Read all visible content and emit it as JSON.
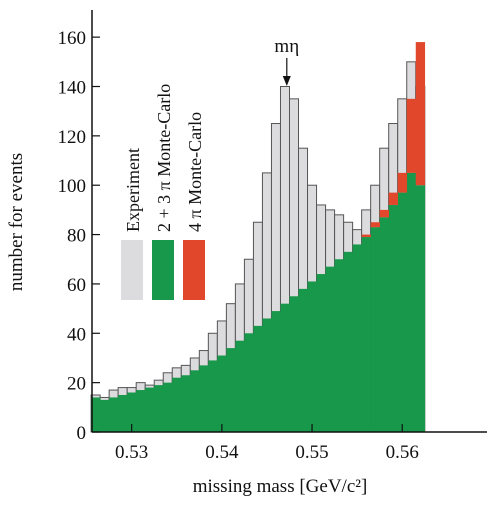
{
  "chart_data": {
    "type": "histogram",
    "xlabel": "missing mass [GeV/c²]",
    "ylabel": "number for events",
    "annotation": {
      "text": "mη",
      "x": 0.5472
    },
    "bins": [
      0.5255,
      0.5265,
      0.5275,
      0.5285,
      0.5295,
      0.5305,
      0.5315,
      0.5325,
      0.5335,
      0.5345,
      0.5355,
      0.5365,
      0.5375,
      0.5385,
      0.5395,
      0.5405,
      0.5415,
      0.5425,
      0.5435,
      0.5445,
      0.5455,
      0.5465,
      0.5475,
      0.5485,
      0.5495,
      0.5505,
      0.5515,
      0.5525,
      0.5535,
      0.5545,
      0.5555,
      0.5565,
      0.5575,
      0.5585,
      0.5595,
      0.5605,
      0.5615,
      0.5625
    ],
    "series": [
      {
        "name": "Experiment",
        "color": "#dcdcdf",
        "values": [
          15,
          14,
          17,
          18,
          18,
          20,
          19,
          21,
          24,
          26,
          27,
          30,
          33,
          40,
          45,
          52,
          60,
          70,
          85,
          105,
          125,
          140,
          135,
          115,
          100,
          92,
          90,
          88,
          85,
          82,
          90,
          100,
          115,
          125,
          135,
          150,
          140
        ]
      },
      {
        "name": "2 + 3 π Monte-Carlo",
        "color": "#17984a",
        "values": [
          14,
          13,
          14,
          15,
          16,
          17,
          18,
          19,
          20,
          22,
          23,
          25,
          27,
          29,
          31,
          34,
          37,
          40,
          43,
          46,
          49,
          52,
          55,
          58,
          61,
          64,
          67,
          70,
          73,
          76,
          79,
          83,
          87,
          92,
          97,
          105,
          100
        ]
      },
      {
        "name": "4 π Monte-Carlo",
        "color": "#e0472b",
        "values": [
          0,
          0,
          0,
          0,
          0,
          0,
          0,
          0,
          0,
          0,
          0,
          0,
          0,
          0,
          0,
          0,
          0,
          0,
          0,
          0,
          0,
          0,
          0,
          0,
          0,
          0,
          0,
          0,
          0,
          0,
          1,
          2,
          3,
          5,
          8,
          30,
          58
        ]
      }
    ],
    "stacked_series": [
      1,
      2
    ],
    "xlim": [
      0.5256,
      0.5694
    ],
    "ylim": [
      0,
      171
    ],
    "xticks": [
      0.53,
      0.54,
      0.55,
      0.56
    ],
    "yticks": [
      0,
      20,
      40,
      60,
      80,
      100,
      120,
      140,
      160
    ]
  }
}
